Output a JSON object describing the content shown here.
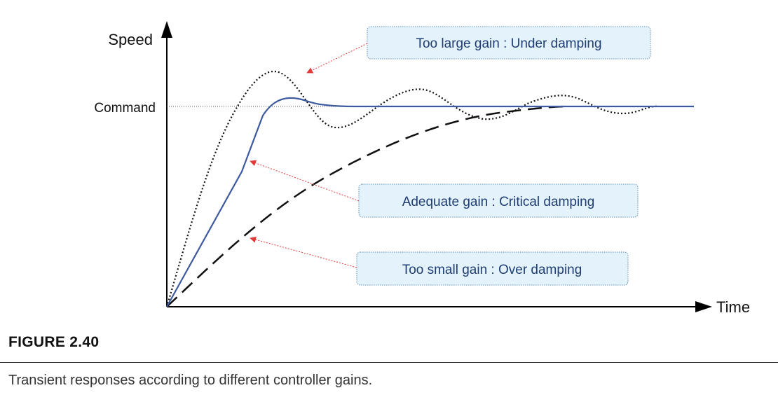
{
  "axis": {
    "y_label": "Speed",
    "x_label": "Time",
    "command_label": "Command"
  },
  "annotations": {
    "under": "Too large gain : Under damping",
    "critical": "Adequate gain : Critical damping",
    "over": "Too small gain : Over damping"
  },
  "figure": {
    "label": "FIGURE 2.40",
    "caption": "Transient responses according to different controller gains."
  },
  "colors": {
    "critical_curve": "#3d5a9f",
    "other_curves": "#111111",
    "annotation_text": "#1f3d73",
    "annotation_fill": "#e4f3fb",
    "annotation_border": "#5b8ec0",
    "arrow": "#e23a3a"
  }
}
